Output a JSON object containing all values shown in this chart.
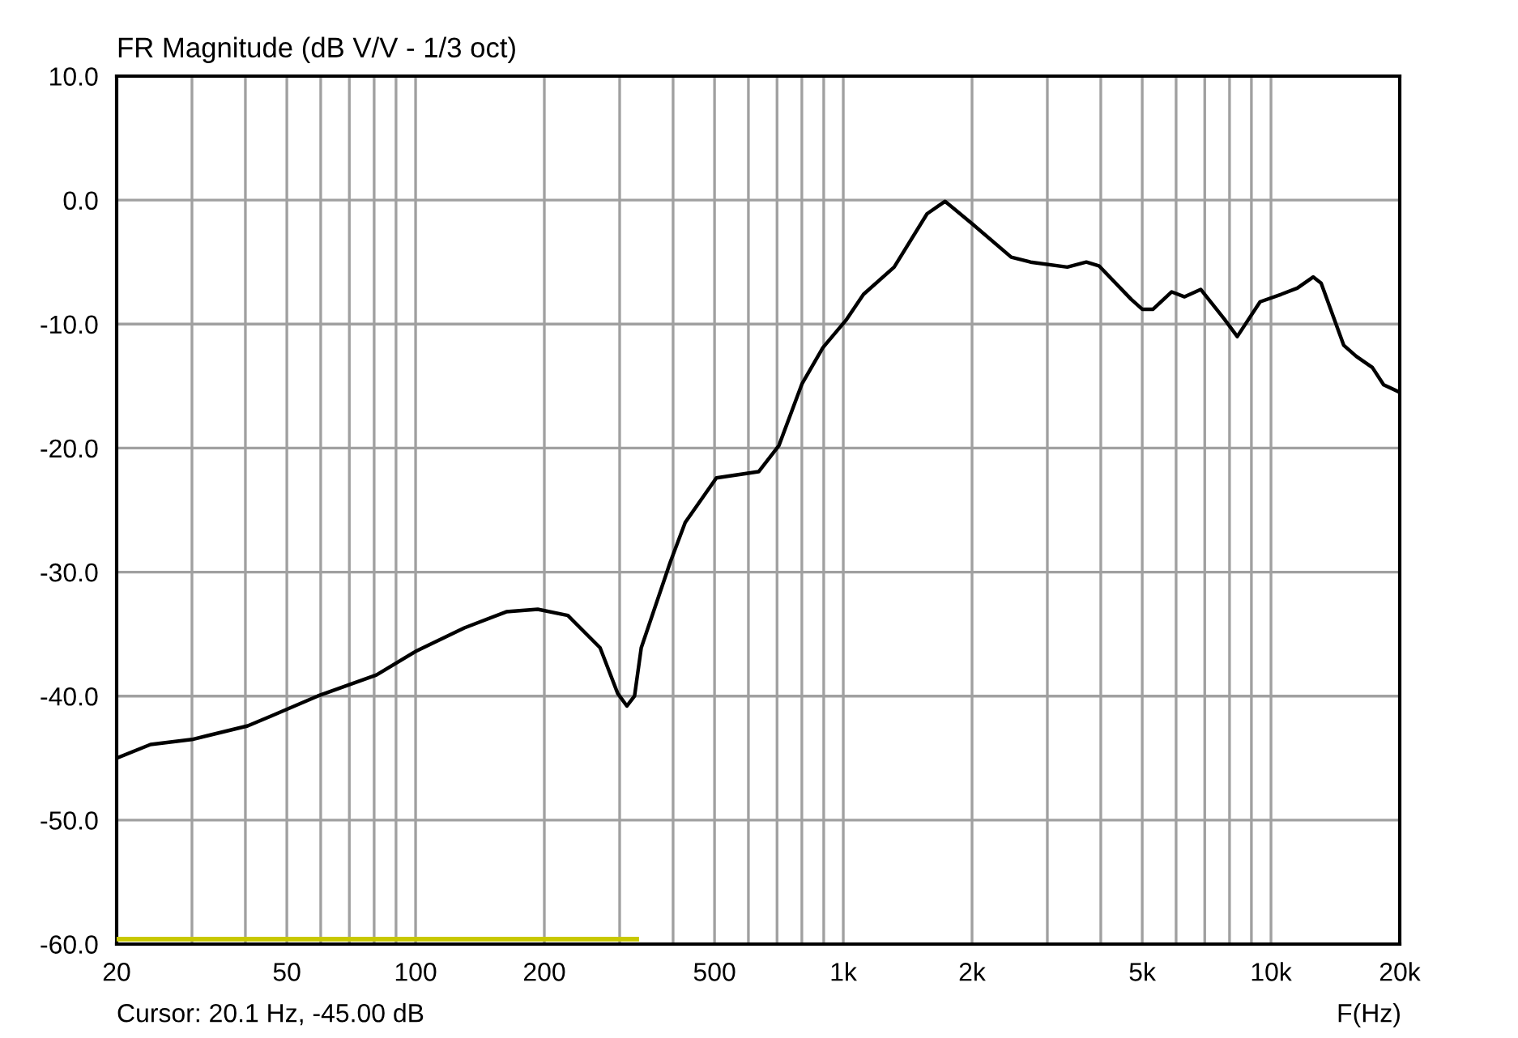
{
  "chart_data": {
    "type": "line",
    "title": "FR Magnitude (dB V/V - 1/3 oct)",
    "xlabel": "F(Hz)",
    "annotations": [
      "Cursor: 20.1 Hz, -45.00 dB"
    ],
    "log": "x",
    "grid": true,
    "line_style": "solid",
    "xlim": [
      20,
      20000
    ],
    "ylim": [
      -60,
      10
    ],
    "xticks": [
      20,
      {
        "value": 30,
        "label": null
      },
      {
        "value": 40,
        "label": null
      },
      50,
      {
        "value": 60,
        "label": null
      },
      {
        "value": 70,
        "label": null
      },
      {
        "value": 80,
        "label": null
      },
      {
        "value": 90,
        "label": null
      },
      100,
      200,
      {
        "value": 300,
        "label": null
      },
      {
        "value": 400,
        "label": null
      },
      500,
      {
        "value": 600,
        "label": null
      },
      {
        "value": 700,
        "label": null
      },
      {
        "value": 800,
        "label": null
      },
      {
        "value": 900,
        "label": null
      },
      {
        "value": 1000,
        "label": "1k"
      },
      {
        "value": 2000,
        "label": "2k"
      },
      {
        "value": 3000,
        "label": null
      },
      {
        "value": 4000,
        "label": null
      },
      {
        "value": 5000,
        "label": "5k"
      },
      {
        "value": 6000,
        "label": null
      },
      {
        "value": 7000,
        "label": null
      },
      {
        "value": 8000,
        "label": null
      },
      {
        "value": 9000,
        "label": null
      },
      {
        "value": 10000,
        "label": "10k"
      },
      {
        "value": 20000,
        "label": "20k"
      }
    ],
    "yticks": [
      {
        "value": 10,
        "label": "10.0"
      },
      {
        "value": 0,
        "label": "0.0"
      },
      {
        "value": -10,
        "label": "-10.0"
      },
      {
        "value": -20,
        "label": "-20.0"
      },
      {
        "value": -30,
        "label": "-30.0"
      },
      {
        "value": -40,
        "label": "-40.0"
      },
      {
        "value": -50,
        "label": "-50.0"
      },
      {
        "value": -60,
        "label": "-60.0"
      }
    ],
    "series": [
      {
        "color": "#c8c800",
        "x": [
          20,
          329
        ],
        "values": [
          -59.6,
          -59.6
        ]
      },
      {
        "color": "#000000",
        "x": [
          20,
          24,
          30,
          40.5,
          46,
          59,
          81,
          100,
          130,
          163,
          193,
          227,
          270,
          297,
          312,
          325,
          337,
          394,
          427,
          505,
          634,
          707,
          801,
          896,
          1014,
          1115,
          1315,
          1570,
          1730,
          2000,
          2470,
          2740,
          3340,
          3700,
          3960,
          4710,
          5000,
          5300,
          5860,
          6280,
          6850,
          7780,
          8340,
          9430,
          10560,
          11520,
          12550,
          13100,
          14790,
          15830,
          17260,
          18340,
          20000
        ],
        "values": [
          -45.0,
          -43.9,
          -43.5,
          -42.4,
          -41.6,
          -40.0,
          -38.3,
          -36.4,
          -34.5,
          -33.2,
          -33.0,
          -33.5,
          -36.1,
          -39.8,
          -40.8,
          -40.0,
          -36.1,
          -29.2,
          -26.0,
          -22.4,
          -21.9,
          -19.8,
          -14.8,
          -11.9,
          -9.7,
          -7.6,
          -5.4,
          -1.1,
          -0.1,
          -1.9,
          -4.6,
          -5.0,
          -5.4,
          -5.0,
          -5.3,
          -8.0,
          -8.8,
          -8.8,
          -7.4,
          -7.8,
          -7.2,
          -9.6,
          -11.0,
          -8.2,
          -7.6,
          -7.1,
          -6.2,
          -6.7,
          -11.7,
          -12.6,
          -13.5,
          -14.9,
          -15.5
        ]
      }
    ]
  }
}
